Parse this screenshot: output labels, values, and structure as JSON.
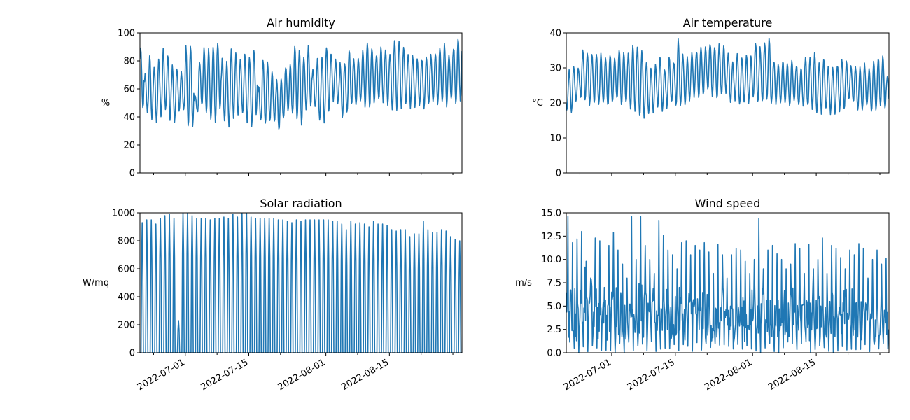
{
  "chart_data": [
    {
      "type": "line",
      "title": "Air humidity",
      "ylabel": "%",
      "xlabel": "",
      "ylim": [
        0,
        100
      ],
      "yticks": [
        0,
        20,
        40,
        60,
        80,
        100
      ],
      "xlim": [
        "2022-06-21",
        "2022-08-31"
      ],
      "xtick_labels_shown": false,
      "grid": false,
      "series": [
        {
          "x": [
            "2022-06-21",
            "2022-06-22",
            "2022-06-23",
            "2022-06-24",
            "2022-06-25",
            "2022-06-26",
            "2022-06-27",
            "2022-06-28",
            "2022-06-29",
            "2022-06-30",
            "2022-07-01",
            "2022-07-02",
            "2022-07-03",
            "2022-07-04",
            "2022-07-05",
            "2022-07-06",
            "2022-07-07",
            "2022-07-08",
            "2022-07-09",
            "2022-07-10",
            "2022-07-11",
            "2022-07-12",
            "2022-07-13",
            "2022-07-14",
            "2022-07-15",
            "2022-07-16",
            "2022-07-17",
            "2022-07-18",
            "2022-07-19",
            "2022-07-20",
            "2022-07-21",
            "2022-07-22",
            "2022-07-23",
            "2022-07-24",
            "2022-07-25",
            "2022-07-26",
            "2022-07-27",
            "2022-07-28",
            "2022-07-29",
            "2022-07-30",
            "2022-07-31",
            "2022-08-01",
            "2022-08-02",
            "2022-08-03",
            "2022-08-04",
            "2022-08-05",
            "2022-08-06",
            "2022-08-07",
            "2022-08-08",
            "2022-08-09",
            "2022-08-10",
            "2022-08-11",
            "2022-08-12",
            "2022-08-13",
            "2022-08-14",
            "2022-08-15",
            "2022-08-16",
            "2022-08-17",
            "2022-08-18",
            "2022-08-19",
            "2022-08-20",
            "2022-08-21",
            "2022-08-22",
            "2022-08-23",
            "2022-08-24",
            "2022-08-25",
            "2022-08-26",
            "2022-08-27",
            "2022-08-28",
            "2022-08-29",
            "2022-08-30",
            "2022-08-31"
          ],
          "min": [
            46,
            44,
            38,
            36,
            40,
            44,
            38,
            37,
            44,
            45,
            33,
            32,
            44,
            48,
            42,
            38,
            37,
            46,
            36,
            34,
            38,
            40,
            42,
            35,
            33,
            42,
            38,
            34,
            36,
            36,
            30,
            38,
            45,
            43,
            38,
            35,
            44,
            47,
            48,
            36,
            35,
            44,
            52,
            50,
            40,
            44,
            48,
            48,
            52,
            48,
            46,
            50,
            52,
            50,
            48,
            45,
            46,
            46,
            48,
            47,
            48,
            48,
            47,
            48,
            50,
            50,
            50,
            48,
            52,
            50,
            52,
            74
          ],
          "max": [
            90,
            70,
            83,
            76,
            82,
            88,
            85,
            76,
            75,
            72,
            90,
            91,
            55,
            80,
            90,
            88,
            90,
            93,
            82,
            80,
            90,
            86,
            82,
            85,
            84,
            88,
            62,
            82,
            78,
            72,
            66,
            66,
            76,
            78,
            92,
            88,
            83,
            90,
            74,
            82,
            82,
            90,
            86,
            80,
            78,
            78,
            88,
            82,
            82,
            88,
            94,
            90,
            85,
            90,
            88,
            86,
            96,
            95,
            90,
            86,
            83,
            82,
            82,
            84,
            84,
            86,
            90,
            92,
            84,
            90,
            96,
            90
          ]
        }
      ]
    },
    {
      "type": "line",
      "title": "Air temperature",
      "ylabel": "°C",
      "xlabel": "",
      "ylim": [
        0,
        40
      ],
      "yticks": [
        0,
        10,
        20,
        30,
        40
      ],
      "xlim": [
        "2022-06-21",
        "2022-08-31"
      ],
      "xtick_labels_shown": false,
      "grid": false,
      "series": [
        {
          "x": [
            "2022-06-21",
            "2022-06-22",
            "2022-06-23",
            "2022-06-24",
            "2022-06-25",
            "2022-06-26",
            "2022-06-27",
            "2022-06-28",
            "2022-06-29",
            "2022-06-30",
            "2022-07-01",
            "2022-07-02",
            "2022-07-03",
            "2022-07-04",
            "2022-07-05",
            "2022-07-06",
            "2022-07-07",
            "2022-07-08",
            "2022-07-09",
            "2022-07-10",
            "2022-07-11",
            "2022-07-12",
            "2022-07-13",
            "2022-07-14",
            "2022-07-15",
            "2022-07-16",
            "2022-07-17",
            "2022-07-18",
            "2022-07-19",
            "2022-07-20",
            "2022-07-21",
            "2022-07-22",
            "2022-07-23",
            "2022-07-24",
            "2022-07-25",
            "2022-07-26",
            "2022-07-27",
            "2022-07-28",
            "2022-07-29",
            "2022-07-30",
            "2022-07-31",
            "2022-08-01",
            "2022-08-02",
            "2022-08-03",
            "2022-08-04",
            "2022-08-05",
            "2022-08-06",
            "2022-08-07",
            "2022-08-08",
            "2022-08-09",
            "2022-08-10",
            "2022-08-11",
            "2022-08-12",
            "2022-08-13",
            "2022-08-14",
            "2022-08-15",
            "2022-08-16",
            "2022-08-17",
            "2022-08-18",
            "2022-08-19",
            "2022-08-20",
            "2022-08-21",
            "2022-08-22",
            "2022-08-23",
            "2022-08-24",
            "2022-08-25",
            "2022-08-26",
            "2022-08-27",
            "2022-08-28",
            "2022-08-29",
            "2022-08-30",
            "2022-08-31"
          ],
          "min": [
            18,
            17,
            20,
            21,
            21,
            19,
            20,
            19,
            20,
            19,
            20,
            21,
            19,
            20,
            18,
            17,
            16,
            16,
            17,
            17,
            19,
            18,
            19,
            20,
            19,
            19,
            20,
            21,
            22,
            22,
            22,
            24,
            22,
            21,
            22,
            23,
            20,
            21,
            20,
            20,
            20,
            21,
            20,
            20,
            21,
            20,
            20,
            20,
            20,
            19,
            21,
            19,
            19,
            19,
            18,
            17,
            17,
            18,
            17,
            17,
            18,
            18,
            21,
            20,
            18,
            18,
            19,
            17,
            18,
            19,
            19,
            20
          ],
          "max": [
            29,
            31,
            30,
            35,
            34,
            34,
            34,
            34,
            33,
            34,
            33,
            35,
            35,
            34,
            36,
            36,
            35,
            32,
            30,
            31,
            33,
            30,
            33,
            32,
            38,
            34,
            33,
            34,
            35,
            36,
            36,
            37,
            36,
            37,
            36,
            34,
            32,
            34,
            33,
            34,
            33,
            37,
            36,
            37,
            38,
            32,
            31,
            32,
            31,
            32,
            31,
            30,
            33,
            33,
            34,
            32,
            33,
            30,
            30,
            31,
            33,
            32,
            31,
            30,
            30,
            31,
            30,
            32,
            33,
            33,
            28,
            26
          ]
        }
      ]
    },
    {
      "type": "line",
      "title": "Solar radiation",
      "ylabel": "W/mq",
      "xlabel": "",
      "ylim": [
        0,
        1000
      ],
      "yticks": [
        0,
        200,
        400,
        600,
        800,
        1000
      ],
      "xlim": [
        "2022-06-21",
        "2022-08-31"
      ],
      "xtick_labels": [
        "2022-07-01",
        "2022-07-15",
        "2022-08-01",
        "2022-08-15"
      ],
      "grid": false,
      "series": [
        {
          "x": [
            "2022-06-21",
            "2022-06-22",
            "2022-06-23",
            "2022-06-24",
            "2022-06-25",
            "2022-06-26",
            "2022-06-27",
            "2022-06-28",
            "2022-06-29",
            "2022-06-30",
            "2022-07-01",
            "2022-07-02",
            "2022-07-03",
            "2022-07-04",
            "2022-07-05",
            "2022-07-06",
            "2022-07-07",
            "2022-07-08",
            "2022-07-09",
            "2022-07-10",
            "2022-07-11",
            "2022-07-12",
            "2022-07-13",
            "2022-07-14",
            "2022-07-15",
            "2022-07-16",
            "2022-07-17",
            "2022-07-18",
            "2022-07-19",
            "2022-07-20",
            "2022-07-21",
            "2022-07-22",
            "2022-07-23",
            "2022-07-24",
            "2022-07-25",
            "2022-07-26",
            "2022-07-27",
            "2022-07-28",
            "2022-07-29",
            "2022-07-30",
            "2022-07-31",
            "2022-08-01",
            "2022-08-02",
            "2022-08-03",
            "2022-08-04",
            "2022-08-05",
            "2022-08-06",
            "2022-08-07",
            "2022-08-08",
            "2022-08-09",
            "2022-08-10",
            "2022-08-11",
            "2022-08-12",
            "2022-08-13",
            "2022-08-14",
            "2022-08-15",
            "2022-08-16",
            "2022-08-17",
            "2022-08-18",
            "2022-08-19",
            "2022-08-20",
            "2022-08-21",
            "2022-08-22",
            "2022-08-23",
            "2022-08-24",
            "2022-08-25",
            "2022-08-26",
            "2022-08-27",
            "2022-08-28",
            "2022-08-29",
            "2022-08-30",
            "2022-08-31"
          ],
          "daily_peak": [
            930,
            950,
            950,
            920,
            960,
            980,
            990,
            960,
            230,
            1000,
            1000,
            980,
            960,
            960,
            960,
            950,
            960,
            960,
            970,
            960,
            990,
            970,
            1000,
            1000,
            970,
            960,
            960,
            960,
            960,
            960,
            950,
            950,
            940,
            930,
            950,
            940,
            950,
            950,
            950,
            950,
            950,
            950,
            940,
            940,
            920,
            880,
            940,
            920,
            930,
            920,
            900,
            940,
            920,
            920,
            910,
            880,
            870,
            880,
            880,
            830,
            850,
            850,
            940,
            880,
            860,
            860,
            880,
            870,
            830,
            810,
            800,
            660
          ]
        }
      ]
    },
    {
      "type": "line",
      "title": "Wind speed",
      "ylabel": "m/s",
      "xlabel": "",
      "ylim": [
        0,
        15
      ],
      "yticks": [
        0.0,
        2.5,
        5.0,
        7.5,
        10.0,
        12.5,
        15.0
      ],
      "xlim": [
        "2022-06-21",
        "2022-08-31"
      ],
      "xtick_labels": [
        "2022-07-01",
        "2022-07-15",
        "2022-08-01",
        "2022-08-15"
      ],
      "grid": false,
      "series": [
        {
          "x": [
            "2022-06-21",
            "2022-06-22",
            "2022-06-23",
            "2022-06-24",
            "2022-06-25",
            "2022-06-26",
            "2022-06-27",
            "2022-06-28",
            "2022-06-29",
            "2022-06-30",
            "2022-07-01",
            "2022-07-02",
            "2022-07-03",
            "2022-07-04",
            "2022-07-05",
            "2022-07-06",
            "2022-07-07",
            "2022-07-08",
            "2022-07-09",
            "2022-07-10",
            "2022-07-11",
            "2022-07-12",
            "2022-07-13",
            "2022-07-14",
            "2022-07-15",
            "2022-07-16",
            "2022-07-17",
            "2022-07-18",
            "2022-07-19",
            "2022-07-20",
            "2022-07-21",
            "2022-07-22",
            "2022-07-23",
            "2022-07-24",
            "2022-07-25",
            "2022-07-26",
            "2022-07-27",
            "2022-07-28",
            "2022-07-29",
            "2022-07-30",
            "2022-07-31",
            "2022-08-01",
            "2022-08-02",
            "2022-08-03",
            "2022-08-04",
            "2022-08-05",
            "2022-08-06",
            "2022-08-07",
            "2022-08-08",
            "2022-08-09",
            "2022-08-10",
            "2022-08-11",
            "2022-08-12",
            "2022-08-13",
            "2022-08-14",
            "2022-08-15",
            "2022-08-16",
            "2022-08-17",
            "2022-08-18",
            "2022-08-19",
            "2022-08-20",
            "2022-08-21",
            "2022-08-22",
            "2022-08-23",
            "2022-08-24",
            "2022-08-25",
            "2022-08-26",
            "2022-08-27",
            "2022-08-28",
            "2022-08-29",
            "2022-08-30",
            "2022-08-31"
          ],
          "max": [
            14.6,
            11.8,
            12.2,
            13.0,
            9.8,
            8.0,
            12.3,
            12.0,
            7.0,
            11.5,
            12.9,
            11.0,
            9.5,
            8.0,
            14.6,
            10.0,
            14.6,
            11.5,
            10.0,
            8.5,
            14.2,
            12.6,
            11.0,
            10.5,
            9.0,
            11.8,
            12.0,
            10.5,
            11.5,
            11.0,
            11.8,
            10.8,
            8.5,
            11.6,
            10.5,
            8.0,
            10.5,
            11.2,
            11.0,
            9.8,
            8.5,
            10.0,
            14.4,
            9.0,
            11.0,
            11.5,
            10.6,
            10.0,
            9.0,
            9.5,
            11.7,
            11.2,
            8.5,
            11.6,
            9.0,
            10.0,
            12.3,
            8.5,
            11.5,
            11.2,
            10.2,
            9.0,
            11.0,
            10.5,
            11.7,
            11.2,
            8.0,
            10.0,
            11.0,
            9.5,
            10.1,
            9.4
          ],
          "typical": [
            5,
            6,
            4,
            5,
            7,
            6,
            5,
            4,
            5,
            4,
            5,
            6,
            5,
            4,
            5,
            5,
            6,
            5,
            4,
            5,
            5,
            6,
            5,
            4,
            5,
            5,
            4,
            5,
            5,
            4,
            5,
            5,
            4,
            4,
            5,
            5,
            4,
            5,
            5,
            4,
            5,
            5,
            4,
            5,
            5,
            4,
            5,
            4,
            5,
            5,
            4,
            5,
            5,
            4,
            5,
            5,
            4,
            4,
            5,
            5,
            4,
            5,
            5,
            4,
            5,
            4,
            5,
            4,
            5,
            4,
            5,
            3
          ]
        }
      ]
    }
  ]
}
